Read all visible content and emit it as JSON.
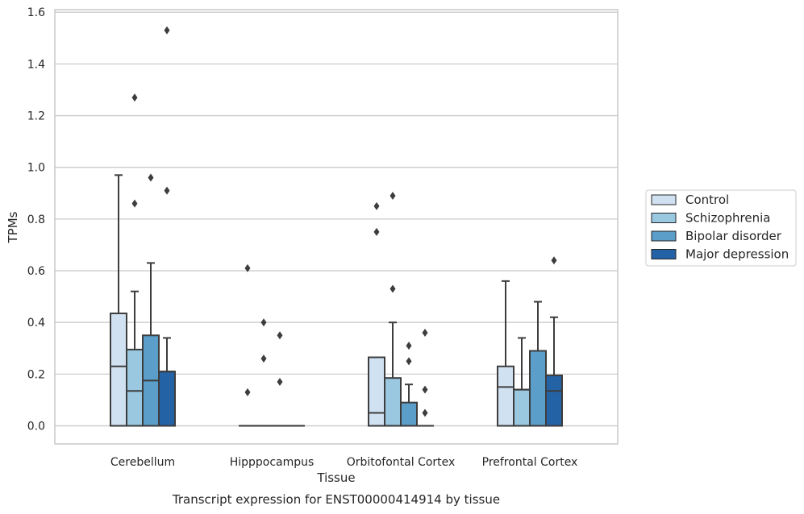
{
  "chart_data": {
    "type": "boxplot",
    "title": "Transcript expression for ENST00000414914 by tissue",
    "xlabel": "Tissue",
    "ylabel": "TPMs",
    "ylim": [
      -0.07,
      1.61
    ],
    "yticks": [
      0.0,
      0.2,
      0.4,
      0.6,
      0.8,
      1.0,
      1.2,
      1.4,
      1.6
    ],
    "grid": "horizontal",
    "legend_position": "right",
    "categories": [
      "Cerebellum",
      "Hipppocampus",
      "Orbitofontal Cortex",
      "Prefrontal Cortex"
    ],
    "series": [
      {
        "name": "Control",
        "color": "#d0e1f2",
        "boxes": [
          {
            "q1": 0.0,
            "median": 0.23,
            "q3": 0.435,
            "whisker_low": 0.0,
            "whisker_high": 0.97,
            "outliers": []
          },
          {
            "q1": 0.0,
            "median": 0.0,
            "q3": 0.0,
            "whisker_low": 0.0,
            "whisker_high": 0.0,
            "outliers": [
              0.13,
              0.61
            ]
          },
          {
            "q1": 0.0,
            "median": 0.05,
            "q3": 0.265,
            "whisker_low": 0.0,
            "whisker_high": 0.265,
            "outliers": [
              0.75,
              0.85
            ]
          },
          {
            "q1": 0.0,
            "median": 0.15,
            "q3": 0.23,
            "whisker_low": 0.0,
            "whisker_high": 0.56,
            "outliers": []
          }
        ]
      },
      {
        "name": "Schizophrenia",
        "color": "#9ac8e0",
        "boxes": [
          {
            "q1": 0.0,
            "median": 0.135,
            "q3": 0.295,
            "whisker_low": 0.0,
            "whisker_high": 0.52,
            "outliers": [
              0.86,
              1.27
            ]
          },
          {
            "q1": 0.0,
            "median": 0.0,
            "q3": 0.0,
            "whisker_low": 0.0,
            "whisker_high": 0.0,
            "outliers": [
              0.26,
              0.4
            ]
          },
          {
            "q1": 0.0,
            "median": 0.0,
            "q3": 0.185,
            "whisker_low": 0.0,
            "whisker_high": 0.4,
            "outliers": [
              0.53,
              0.89
            ]
          },
          {
            "q1": 0.0,
            "median": 0.14,
            "q3": 0.14,
            "whisker_low": 0.0,
            "whisker_high": 0.34,
            "outliers": []
          }
        ]
      },
      {
        "name": "Bipolar disorder",
        "color": "#5a9ec9",
        "boxes": [
          {
            "q1": 0.0,
            "median": 0.175,
            "q3": 0.35,
            "whisker_low": 0.0,
            "whisker_high": 0.63,
            "outliers": [
              0.96
            ]
          },
          {
            "q1": 0.0,
            "median": 0.0,
            "q3": 0.0,
            "whisker_low": 0.0,
            "whisker_high": 0.0,
            "outliers": [
              0.17,
              0.35
            ]
          },
          {
            "q1": 0.0,
            "median": 0.0,
            "q3": 0.09,
            "whisker_low": 0.0,
            "whisker_high": 0.16,
            "outliers": [
              0.25,
              0.31
            ]
          },
          {
            "q1": 0.0,
            "median": 0.0,
            "q3": 0.29,
            "whisker_low": 0.0,
            "whisker_high": 0.48,
            "outliers": []
          }
        ]
      },
      {
        "name": "Major depression",
        "color": "#2462a6",
        "boxes": [
          {
            "q1": 0.0,
            "median": 0.21,
            "q3": 0.21,
            "whisker_low": 0.0,
            "whisker_high": 0.34,
            "outliers": [
              0.91,
              1.53
            ]
          },
          {
            "q1": 0.0,
            "median": 0.0,
            "q3": 0.0,
            "whisker_low": 0.0,
            "whisker_high": 0.0,
            "outliers": []
          },
          {
            "q1": 0.0,
            "median": 0.0,
            "q3": 0.0,
            "whisker_low": 0.0,
            "whisker_high": 0.0,
            "outliers": [
              0.05,
              0.14,
              0.36
            ]
          },
          {
            "q1": 0.0,
            "median": 0.135,
            "q3": 0.195,
            "whisker_low": 0.0,
            "whisker_high": 0.42,
            "outliers": [
              0.64
            ]
          }
        ]
      }
    ]
  },
  "style": {
    "edge_color": "#3d3d3d",
    "grid_color": "#cccccc",
    "frame_color": "#c8c8c8",
    "text_color": "#262626"
  }
}
